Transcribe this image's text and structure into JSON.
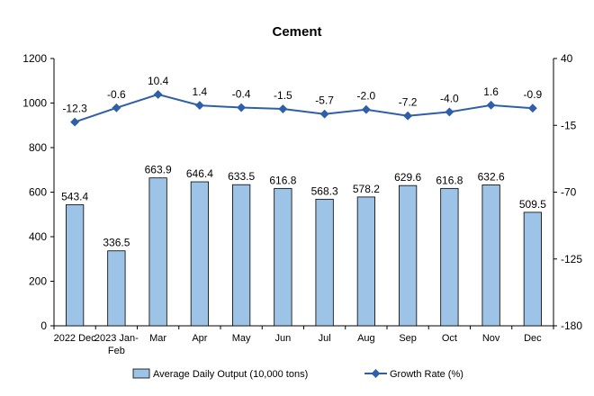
{
  "chart_data": {
    "type": "bar",
    "title": "Cement",
    "categories": [
      "2022 Dec",
      "2023 Jan-\nFeb",
      "Mar",
      "Apr",
      "May",
      "Jun",
      "Jul",
      "Aug",
      "Sep",
      "Oct",
      "Nov",
      "Dec"
    ],
    "series": [
      {
        "name": "Average Daily Output (10,000 tons)",
        "type": "bar",
        "axis": "left",
        "values": [
          543.4,
          336.5,
          663.9,
          646.4,
          633.5,
          616.8,
          568.3,
          578.2,
          629.6,
          616.8,
          632.6,
          509.5
        ],
        "labels": [
          "543.4",
          "336.5",
          "663.9",
          "646.4",
          "633.5",
          "616.8",
          "568.3",
          "578.2",
          "629.6",
          "616.8",
          "632.6",
          "509.5"
        ],
        "color": "#9DC3E6"
      },
      {
        "name": "Growth Rate (%)",
        "type": "line",
        "axis": "right",
        "values": [
          -12.3,
          -0.6,
          10.4,
          1.4,
          -0.4,
          -1.5,
          -5.7,
          -2.0,
          -7.2,
          -4.0,
          1.6,
          -0.9
        ],
        "labels": [
          "-12.3",
          "-0.6",
          "10.4",
          "1.4",
          "-0.4",
          "-1.5",
          "-5.7",
          "-2.0",
          "-7.2",
          "-4.0",
          "1.6",
          "-0.9"
        ],
        "color": "#2E5FA8"
      }
    ],
    "y_left": {
      "min": 0,
      "max": 1200,
      "ticks": [
        "0",
        "200",
        "400",
        "600",
        "800",
        "1000",
        "1200"
      ]
    },
    "y_right": {
      "min": -180,
      "max": 40,
      "ticks": [
        "-180",
        "-125",
        "-70",
        "-15",
        "40"
      ]
    },
    "legend": "bottom",
    "grid": false
  }
}
